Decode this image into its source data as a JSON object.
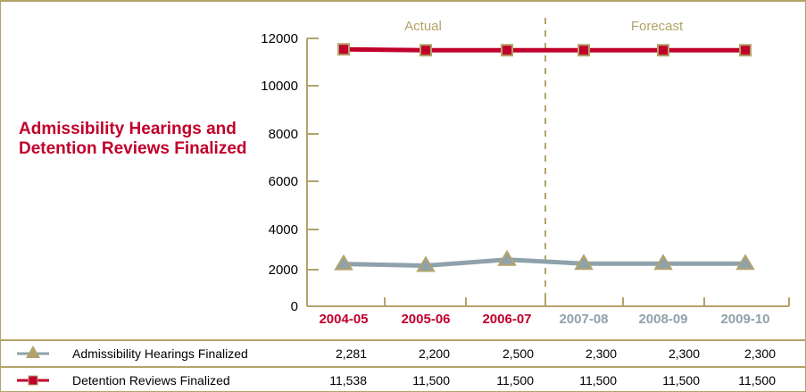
{
  "chart_data": {
    "type": "line",
    "title": "Admissibility Hearings and Detention Reviews Finalized",
    "categories": [
      "2004-05",
      "2005-06",
      "2006-07",
      "2007-08",
      "2008-09",
      "2009-10"
    ],
    "category_colors": [
      "#c0002b",
      "#c0002b",
      "#c0002b",
      "#8fa2ab",
      "#8fa2ab",
      "#8fa2ab"
    ],
    "regions": [
      "Actual",
      "Forecast"
    ],
    "yticks": [
      0,
      2000,
      4000,
      6000,
      8000,
      10000,
      12000
    ],
    "ylim": [
      0,
      12000
    ],
    "series": [
      {
        "name": "Admissibility Hearings Finalized",
        "color": "#8fa2ab",
        "marker": "triangle",
        "values": [
          2281,
          2200,
          2500,
          2300,
          2300,
          2300
        ],
        "labels": [
          "2,281",
          "2,200",
          "2,500",
          "2,300",
          "2,300",
          "2,300"
        ]
      },
      {
        "name": "Detention Reviews Finalized",
        "color": "#c0002b",
        "marker": "square",
        "values": [
          11538,
          11500,
          11500,
          11500,
          11500,
          11500
        ],
        "labels": [
          "11,538",
          "11,500",
          "11,500",
          "11,500",
          "11,500",
          "11,500"
        ]
      }
    ]
  }
}
